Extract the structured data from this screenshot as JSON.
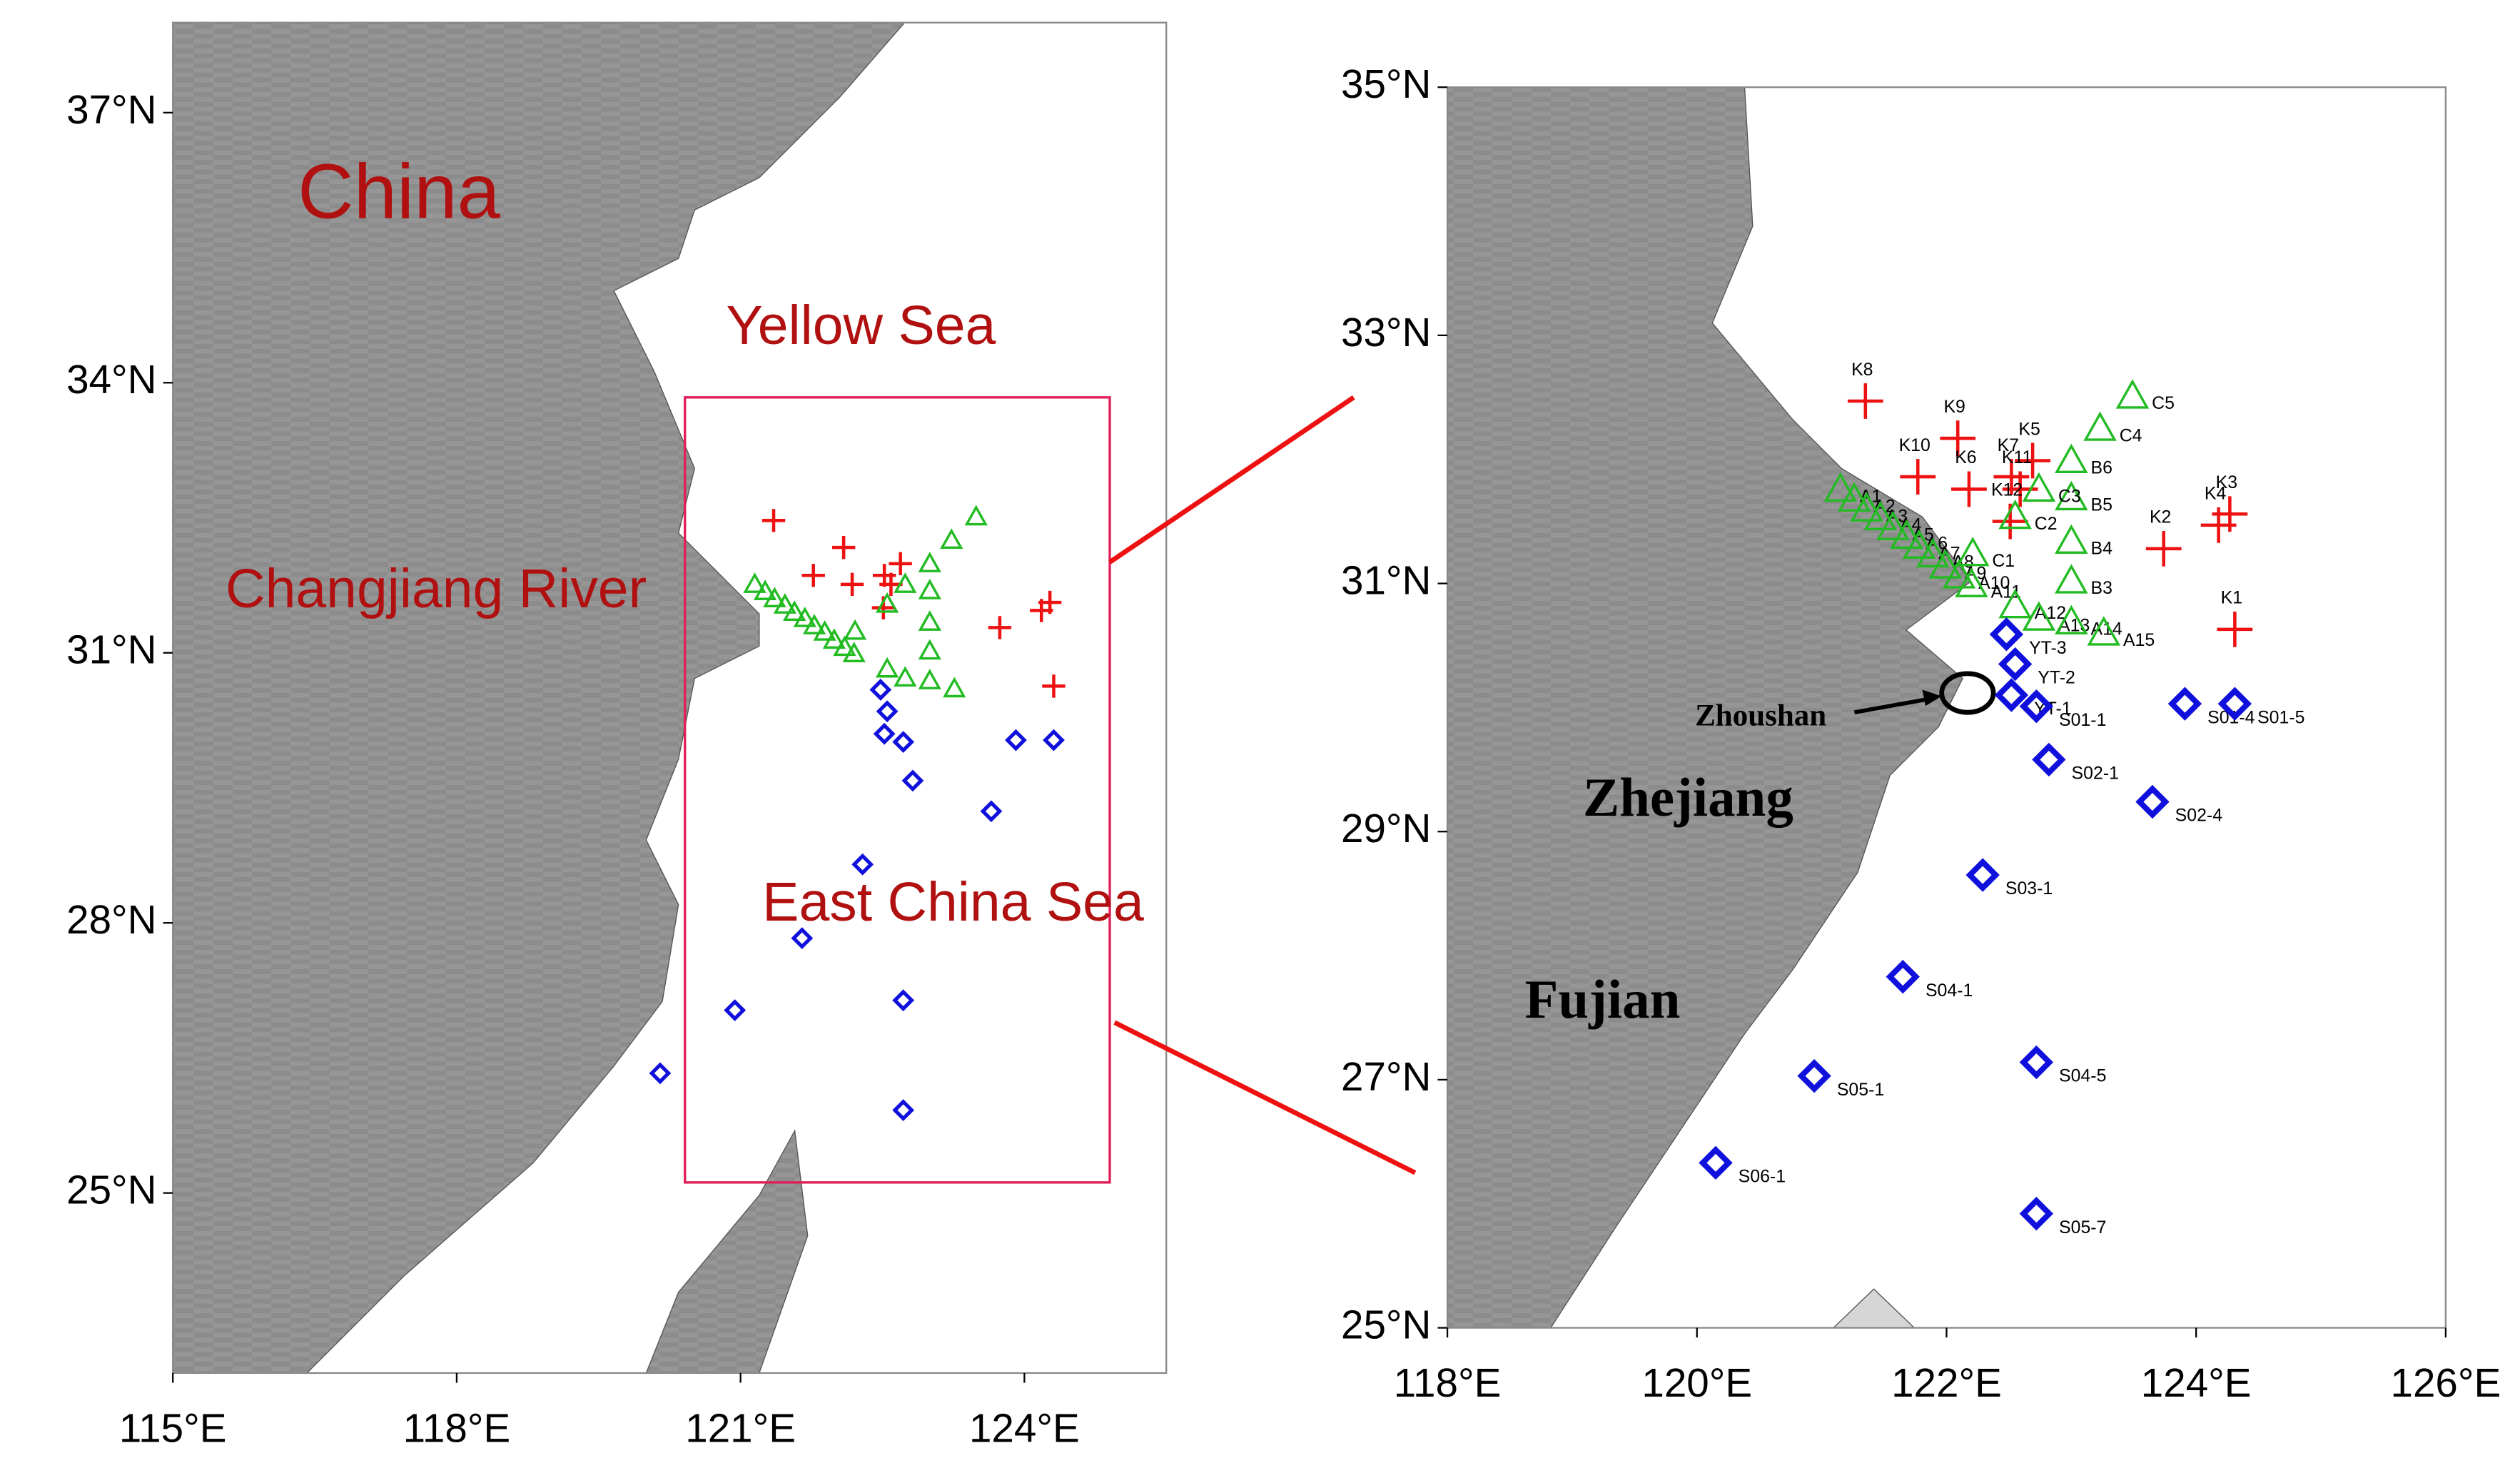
{
  "maps": [
    {
      "xlim": [
        115,
        125.5
      ],
      "ylim": [
        23,
        38
      ],
      "xticks": [
        {
          "value": 115,
          "label": "115°E"
        },
        {
          "value": 118,
          "label": "118°E"
        },
        {
          "value": 121,
          "label": "121°E"
        },
        {
          "value": 124,
          "label": "124°E"
        }
      ],
      "yticks": [
        {
          "value": 25,
          "label": "25°N"
        },
        {
          "value": 28,
          "label": "28°N"
        },
        {
          "value": 31,
          "label": "31°N"
        },
        {
          "value": 34,
          "label": "34°N"
        },
        {
          "value": 37,
          "label": "37°N"
        }
      ],
      "labels": [
        "China",
        "Yellow Sea",
        "Changjiang River",
        "East China Sea"
      ]
    },
    {
      "xlim": [
        118,
        126
      ],
      "ylim": [
        25,
        35
      ],
      "xticks": [
        {
          "value": 118,
          "label": "118°E"
        },
        {
          "value": 120,
          "label": "120°E"
        },
        {
          "value": 122,
          "label": "122°E"
        },
        {
          "value": 124,
          "label": "124°E"
        },
        {
          "value": 126,
          "label": "126°E"
        }
      ],
      "yticks": [
        {
          "value": 25,
          "label": "25°N"
        },
        {
          "value": 27,
          "label": "27°N"
        },
        {
          "value": 29,
          "label": "29°N"
        },
        {
          "value": 31,
          "label": "31°N"
        },
        {
          "value": 33,
          "label": "33°N"
        },
        {
          "value": 35,
          "label": "35°N"
        }
      ],
      "labels": [
        "Zhejiang",
        "Fujian",
        "Zhoushan"
      ]
    }
  ],
  "stations": {
    "crosses": [
      {
        "name": "K8",
        "lon": 121.35,
        "lat": 32.47
      },
      {
        "name": "K9",
        "lon": 122.09,
        "lat": 32.17
      },
      {
        "name": "K10",
        "lon": 121.77,
        "lat": 31.86
      },
      {
        "name": "K6",
        "lon": 122.18,
        "lat": 31.76
      },
      {
        "name": "K7",
        "lon": 122.52,
        "lat": 31.86
      },
      {
        "name": "K5",
        "lon": 122.69,
        "lat": 31.99
      },
      {
        "name": "K11",
        "lon": 122.59,
        "lat": 31.76
      },
      {
        "name": "K12",
        "lon": 122.51,
        "lat": 31.5
      },
      {
        "name": "K2",
        "lon": 123.74,
        "lat": 31.28
      },
      {
        "name": "K4",
        "lon": 124.18,
        "lat": 31.47
      },
      {
        "name": "K3",
        "lon": 124.27,
        "lat": 31.56
      },
      {
        "name": "K1",
        "lon": 124.31,
        "lat": 30.63
      }
    ],
    "triangles": [
      {
        "name": "A1",
        "lon": 121.15,
        "lat": 31.76
      },
      {
        "name": "A2",
        "lon": 121.26,
        "lat": 31.68
      },
      {
        "name": "A3",
        "lon": 121.36,
        "lat": 31.6
      },
      {
        "name": "A4",
        "lon": 121.47,
        "lat": 31.53
      },
      {
        "name": "A5",
        "lon": 121.57,
        "lat": 31.45
      },
      {
        "name": "A6",
        "lon": 121.68,
        "lat": 31.38
      },
      {
        "name": "A7",
        "lon": 121.78,
        "lat": 31.3
      },
      {
        "name": "A8",
        "lon": 121.89,
        "lat": 31.23
      },
      {
        "name": "A9",
        "lon": 121.99,
        "lat": 31.14
      },
      {
        "name": "A10",
        "lon": 122.1,
        "lat": 31.06
      },
      {
        "name": "A11",
        "lon": 122.2,
        "lat": 30.99
      },
      {
        "name": "A12",
        "lon": 122.55,
        "lat": 30.82
      },
      {
        "name": "A13",
        "lon": 122.74,
        "lat": 30.72
      },
      {
        "name": "A14",
        "lon": 123.0,
        "lat": 30.69
      },
      {
        "name": "A15",
        "lon": 123.26,
        "lat": 30.6
      },
      {
        "name": "B3",
        "lon": 123.0,
        "lat": 31.02
      },
      {
        "name": "B4",
        "lon": 123.0,
        "lat": 31.34
      },
      {
        "name": "B5",
        "lon": 123.0,
        "lat": 31.69
      },
      {
        "name": "B6",
        "lon": 123.0,
        "lat": 31.99
      },
      {
        "name": "C1",
        "lon": 122.21,
        "lat": 31.24
      },
      {
        "name": "C2",
        "lon": 122.55,
        "lat": 31.54
      },
      {
        "name": "C3",
        "lon": 122.74,
        "lat": 31.76
      },
      {
        "name": "C4",
        "lon": 123.23,
        "lat": 32.25
      },
      {
        "name": "C5",
        "lon": 123.49,
        "lat": 32.51
      }
    ],
    "diamonds": [
      {
        "name": "YT-3",
        "lon": 122.48,
        "lat": 30.59
      },
      {
        "name": "YT-2",
        "lon": 122.55,
        "lat": 30.35
      },
      {
        "name": "YT-1",
        "lon": 122.52,
        "lat": 30.1
      },
      {
        "name": "S01-1",
        "lon": 122.72,
        "lat": 30.01
      },
      {
        "name": "S01-4",
        "lon": 123.91,
        "lat": 30.03
      },
      {
        "name": "S01-5",
        "lon": 124.31,
        "lat": 30.03
      },
      {
        "name": "S02-1",
        "lon": 122.82,
        "lat": 29.58
      },
      {
        "name": "S02-4",
        "lon": 123.65,
        "lat": 29.24
      },
      {
        "name": "S03-1",
        "lon": 122.29,
        "lat": 28.65
      },
      {
        "name": "S04-1",
        "lon": 121.65,
        "lat": 27.83
      },
      {
        "name": "S04-5",
        "lon": 122.72,
        "lat": 27.14
      },
      {
        "name": "S05-1",
        "lon": 120.94,
        "lat": 27.03
      },
      {
        "name": "S05-7",
        "lon": 122.72,
        "lat": 25.92
      },
      {
        "name": "S06-1",
        "lon": 120.15,
        "lat": 26.33
      }
    ]
  }
}
